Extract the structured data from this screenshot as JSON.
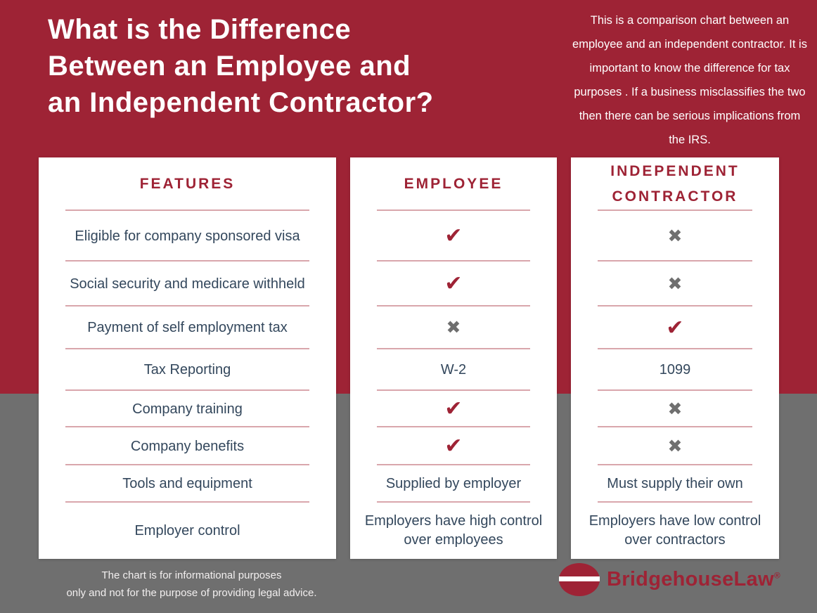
{
  "colors": {
    "maroon": "#9E2335",
    "gray": "#6F6F6F",
    "navy": "#33475C",
    "divider": "#D9A6AC",
    "white": "#FFFFFF"
  },
  "header": {
    "title_lines": [
      "What is the Difference",
      "Between an Employee and",
      "an Independent Contractor?"
    ],
    "intro": "This is a comparison chart between an employee and an independent contractor. It is important to know the difference for tax purposes . If a business misclassifies the two then there can be serious implications from the IRS."
  },
  "icons": {
    "check": "✔",
    "cross": "✖"
  },
  "table": {
    "headers": [
      "FEATURES",
      "EMPLOYEE",
      "INDEPENDENT CONTRACTOR"
    ],
    "rows": [
      {
        "feature": "Eligible for company sponsored visa",
        "employee": "check",
        "contractor": "cross"
      },
      {
        "feature": "Social security and medicare withheld",
        "employee": "check",
        "contractor": "cross"
      },
      {
        "feature": "Payment of self employment tax",
        "employee": "cross",
        "contractor": "check"
      },
      {
        "feature": "Tax Reporting",
        "employee": "W-2",
        "contractor": "1099"
      },
      {
        "feature": "Company training",
        "employee": "check",
        "contractor": "cross"
      },
      {
        "feature": "Company benefits",
        "employee": "check",
        "contractor": "cross"
      },
      {
        "feature": "Tools and equipment",
        "employee": "Supplied by employer",
        "contractor": "Must supply their own"
      },
      {
        "feature": "Employer control",
        "employee": "Employers have high control over employees",
        "contractor": "Employers have low control over contractors"
      }
    ]
  },
  "footer": {
    "disclaimer_lines": [
      "The chart is for informational purposes",
      "only and not for the purpose of providing legal advice."
    ],
    "brand": "BridgehouseLaw",
    "registered_mark": "®"
  }
}
